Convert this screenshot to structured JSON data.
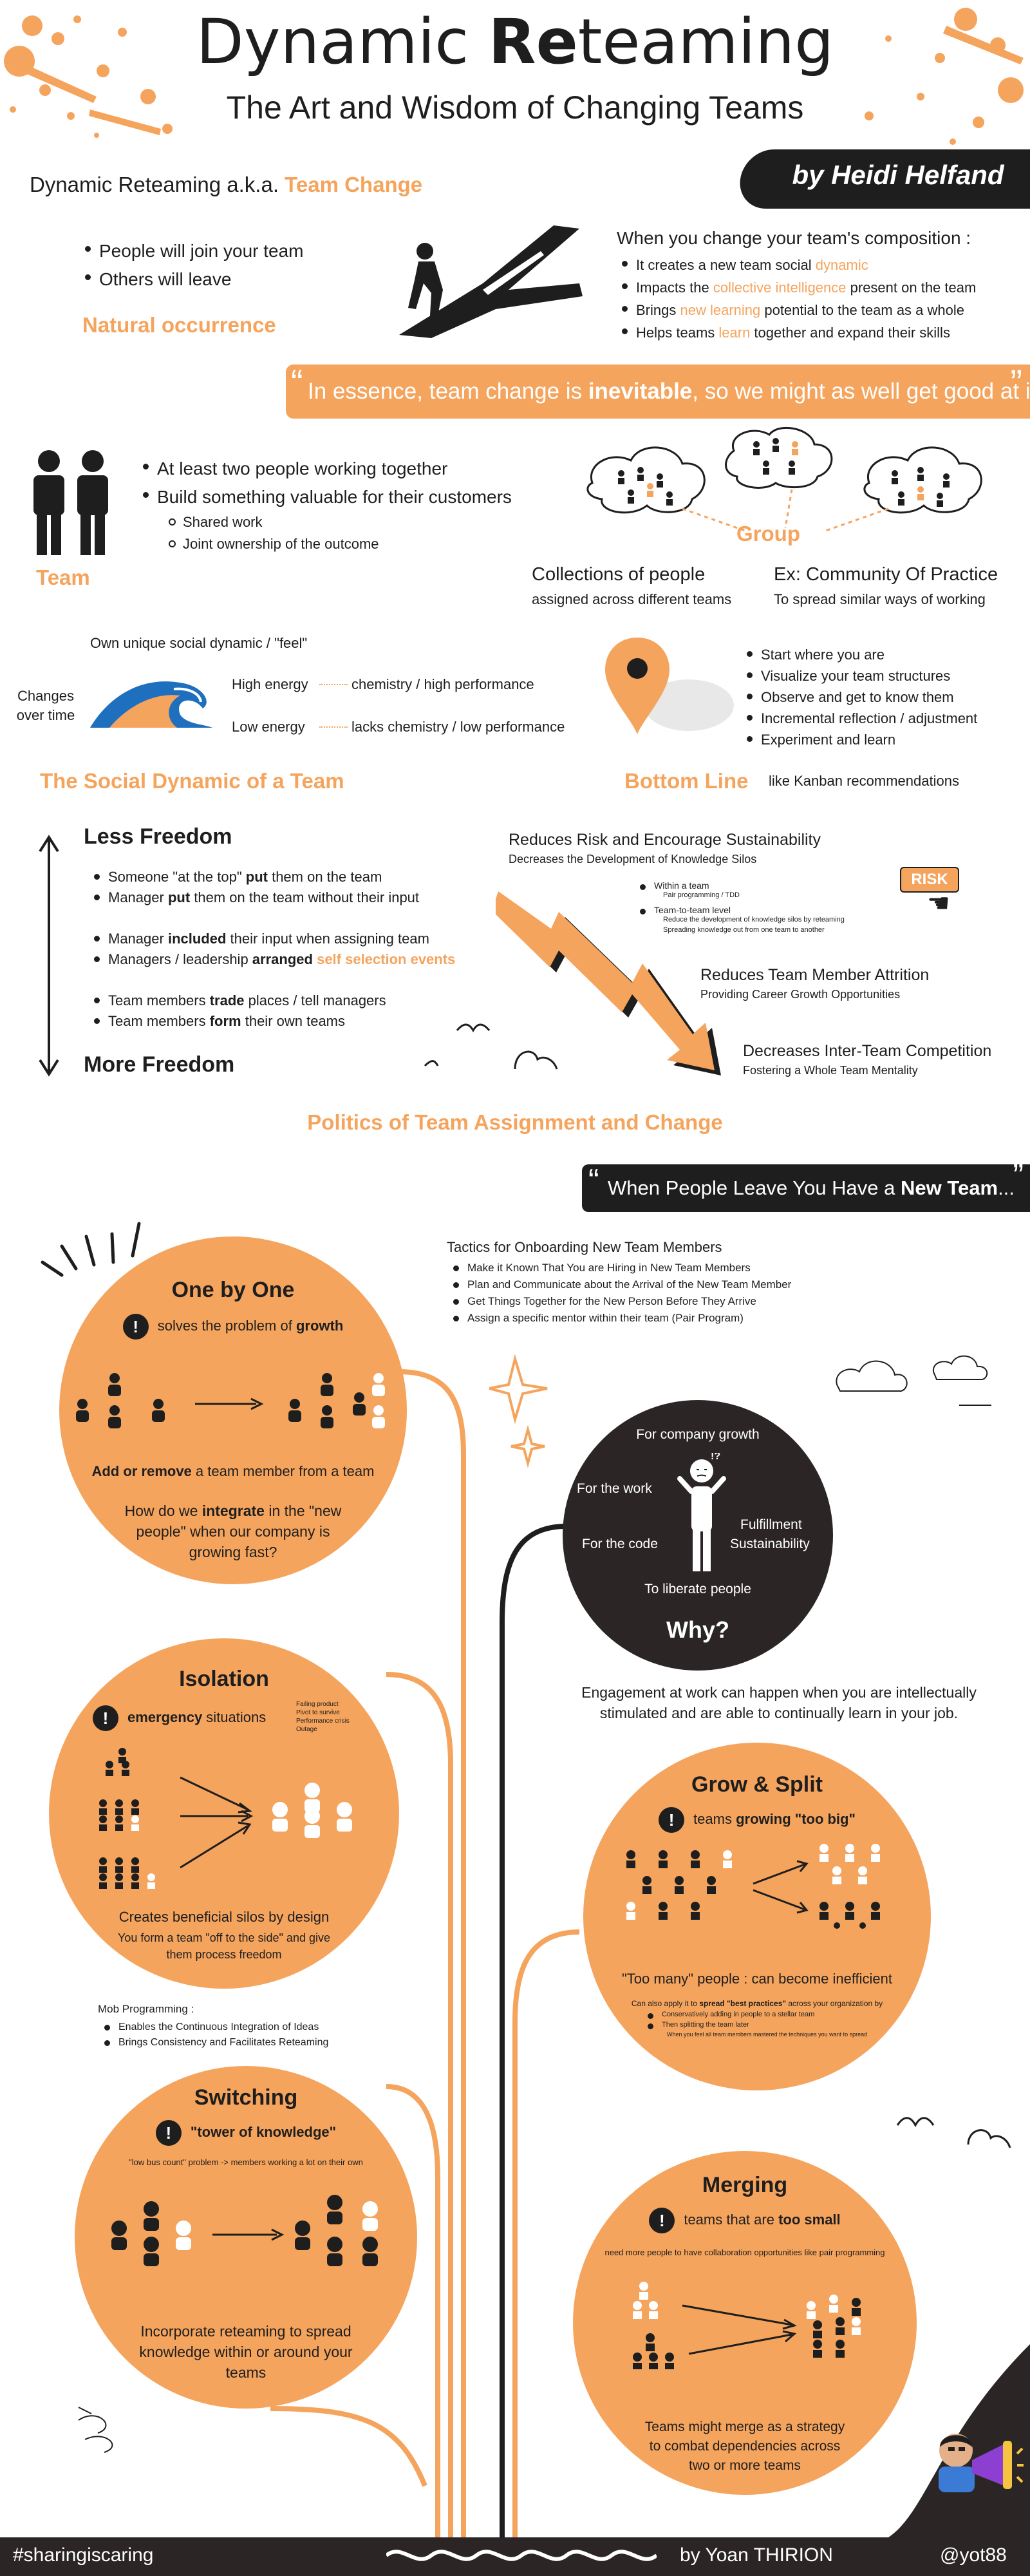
{
  "header": {
    "title_a": "Dynamic ",
    "title_bold": "Re",
    "title_b": "teaming",
    "subtitle": "The Art and Wisdom of Changing Teams",
    "author": "by Heidi Helfand"
  },
  "intro": {
    "aka_prefix": "Dynamic Reteaming a.k.a. ",
    "aka_highlight": "Team Change",
    "bullets": [
      "People will join your team",
      "Others will leave"
    ],
    "natural": "Natural occurrence",
    "composition_title": "When you change your team's composition :",
    "comp1_a": "It creates a new team social ",
    "comp1_b": "dynamic",
    "comp1_c": "",
    "comp2_a": "Impacts the ",
    "comp2_b": "collective intelligence",
    "comp2_c": " present on the team",
    "comp3_a": "Brings ",
    "comp3_b": "new learning",
    "comp3_c": " potential to the team as a whole",
    "comp4_a": "Helps teams ",
    "comp4_b": "learn",
    "comp4_c": " together and expand their skills"
  },
  "quote1": {
    "a": "In essence, team change is ",
    "b": "inevitable",
    "c": ", so we might as well get good at it."
  },
  "team": {
    "bullets": [
      "At least two people working together",
      "Build something valuable for their customers"
    ],
    "sub": [
      "Shared work",
      "Joint ownership of the outcome"
    ],
    "label": "Team",
    "group_label": "Group",
    "collections": "Collections of people",
    "collections_sub": "assigned across different teams",
    "cop": "Ex: Community Of Practice",
    "cop_sub": "To spread similar ways of working"
  },
  "social": {
    "feel": "Own unique social dynamic / \"feel\"",
    "changes": "Changes over time",
    "high": "High energy",
    "high_result": "chemistry / high performance",
    "low": "Low energy",
    "low_result": "lacks chemistry / low performance",
    "label": "The Social Dynamic of a Team"
  },
  "bottom": {
    "bullets": [
      "Start where you are",
      "Visualize your team structures",
      "Observe and get to know them",
      "Incremental reflection / adjustment",
      "Experiment and learn"
    ],
    "label": "Bottom Line",
    "kanban": "like Kanban recommendations"
  },
  "freedom": {
    "less": "Less Freedom",
    "more": "More Freedom",
    "f1_a": "Someone \"at the top\" ",
    "f1_b": "put",
    "f1_c": " them on the team",
    "f2_a": "Manager ",
    "f2_b": "put",
    "f2_c": " them on the team without their input",
    "f3_a": "Manager ",
    "f3_b": "included",
    "f3_c": " their input when assigning team",
    "f4_a": "Managers / leadership ",
    "f4_b": "arranged",
    "f4_c": "self selection events",
    "f5_a": "Team members ",
    "f5_b": "trade",
    "f5_c": " places / tell managers",
    "f6_a": "Team members ",
    "f6_b": "form",
    "f6_c": " their own teams"
  },
  "benefits": {
    "risk_title": "Reduces Risk and Encourage Sustainability",
    "risk_sub": "Decreases the Development of Knowledge Silos",
    "within": "Within a team",
    "within_sub": "Pair programming / TDD",
    "t2t": "Team-to-team level",
    "t2t_sub1": "Reduce the development of knowledge silos by reteaming",
    "t2t_sub2": "Spreading knowledge out from one team to another",
    "risk_badge": "RISK",
    "attrition": "Reduces Team Member Attrition",
    "attrition_sub": "Providing Career Growth Opportunities",
    "competition": "Decreases Inter-Team Competition",
    "competition_sub": "Fostering a Whole Team Mentality"
  },
  "politics": "Politics of Team Assignment and Change",
  "leave": {
    "a": "When People Leave You Have a ",
    "b": "New Team",
    "c": "..."
  },
  "onboarding": {
    "title": "Tactics for Onboarding New Team Members",
    "items": [
      "Make it Known That You are Hiring in New Team Members",
      "Plan and Communicate about the Arrival of the New Team Member",
      "Get Things Together for the New Person Before They Arrive",
      "Assign a specific mentor within their team (Pair Program)"
    ]
  },
  "onebyone": {
    "title": "One by One",
    "problem_a": "solves the problem of ",
    "problem_b": "growth",
    "add_a": "Add or remove",
    "add_b": " a team member from a team",
    "q_a": "How do we ",
    "q_b": "integrate",
    "q_c": " in the \"new people\" when our company is growing fast?"
  },
  "why": {
    "growth": "For company growth",
    "work": "For the work",
    "code": "For the code",
    "fulfillment": "Fulfillment",
    "sustainability": "Sustainability",
    "liberate": "To liberate people",
    "title": "Why?",
    "engagement": "Engagement at work can happen when you are intellectually stimulated and are able to continually learn in your job."
  },
  "isolation": {
    "title": "Isolation",
    "emergency_b": "emergency",
    "emergency_c": " situations",
    "sit1": "Failing product",
    "sit2": "Pivot to survive",
    "sit3": "Performance crisis",
    "sit4": "Outage",
    "silos": "Creates beneficial silos by design",
    "silos_sub": "You form a team \"off to the side\" and give them process freedom"
  },
  "mob": {
    "title": "Mob Programming :",
    "items": [
      "Enables the Continuous Integration of Ideas",
      "Brings Consistency and Facilitates Reteaming"
    ]
  },
  "grow": {
    "title": "Grow & Split",
    "problem_a": "teams ",
    "problem_b": "growing \"too big\"",
    "too_many": "\"Too many\" people : can become inefficient",
    "spread_a": "Can also apply it to ",
    "spread_b": "spread \"best practices\"",
    "spread_c": " across your organization by",
    "sp1": "Conservatively adding in people to a stellar team",
    "sp2": "Then splitting the team later",
    "sp3": "When you feel all team members mastered the techniques you want to spread"
  },
  "switching": {
    "title": "Switching",
    "problem": "\"tower of knowledge\"",
    "bus": "\"low bus count\" problem -> members working a lot on their own",
    "incorporate": "Incorporate reteaming to spread knowledge within or around your teams"
  },
  "merging": {
    "title": "Merging",
    "problem_a": "teams that are ",
    "problem_b": "too small",
    "need": "need more people to have collaboration opportunities like pair programming",
    "merge": "Teams might merge as a strategy to combat dependencies across two or more teams"
  },
  "footer": {
    "hashtag": "#sharingiscaring",
    "by": "by Yoan THIRION",
    "handle": "@yot88"
  },
  "colors": {
    "accent": "#f5a45d",
    "dark": "#2b2526",
    "text": "#1e1e1e"
  }
}
